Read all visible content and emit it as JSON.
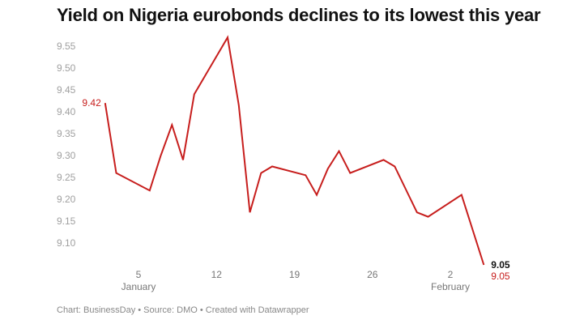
{
  "chart_data": {
    "type": "line",
    "title": "Yield on Nigeria eurobonds declines to its lowest this year",
    "footer": "Chart: BusinessDay • Source: DMO • Created with Datawrapper",
    "xlabel": "",
    "ylabel": "",
    "ylim": [
      9.05,
      9.57
    ],
    "yticks": [
      "9.10",
      "9.15",
      "9.20",
      "9.25",
      "9.30",
      "9.35",
      "9.40",
      "9.45",
      "9.50",
      "9.55"
    ],
    "xticks": [
      {
        "date": "2020-01-05",
        "label": "5",
        "sub": "January"
      },
      {
        "date": "2020-01-12",
        "label": "12",
        "sub": ""
      },
      {
        "date": "2020-01-19",
        "label": "19",
        "sub": ""
      },
      {
        "date": "2020-01-26",
        "label": "26",
        "sub": ""
      },
      {
        "date": "2020-02-02",
        "label": "2",
        "sub": "February"
      }
    ],
    "grid": false,
    "line_color": "#c71e1d",
    "x": [
      "2020-01-02",
      "2020-01-03",
      "2020-01-06",
      "2020-01-07",
      "2020-01-08",
      "2020-01-09",
      "2020-01-10",
      "2020-01-13",
      "2020-01-14",
      "2020-01-15",
      "2020-01-16",
      "2020-01-17",
      "2020-01-20",
      "2020-01-21",
      "2020-01-22",
      "2020-01-23",
      "2020-01-24",
      "2020-01-27",
      "2020-01-28",
      "2020-01-30",
      "2020-01-31",
      "2020-02-03",
      "2020-02-05"
    ],
    "values": [
      9.42,
      9.26,
      9.22,
      9.3,
      9.37,
      9.29,
      9.44,
      9.57,
      9.415,
      9.17,
      9.26,
      9.275,
      9.255,
      9.21,
      9.27,
      9.31,
      9.26,
      9.29,
      9.275,
      9.17,
      9.16,
      9.21,
      9.05
    ],
    "annotations": {
      "start": "9.42",
      "end_black": "9.05",
      "end_red": "9.05"
    }
  }
}
